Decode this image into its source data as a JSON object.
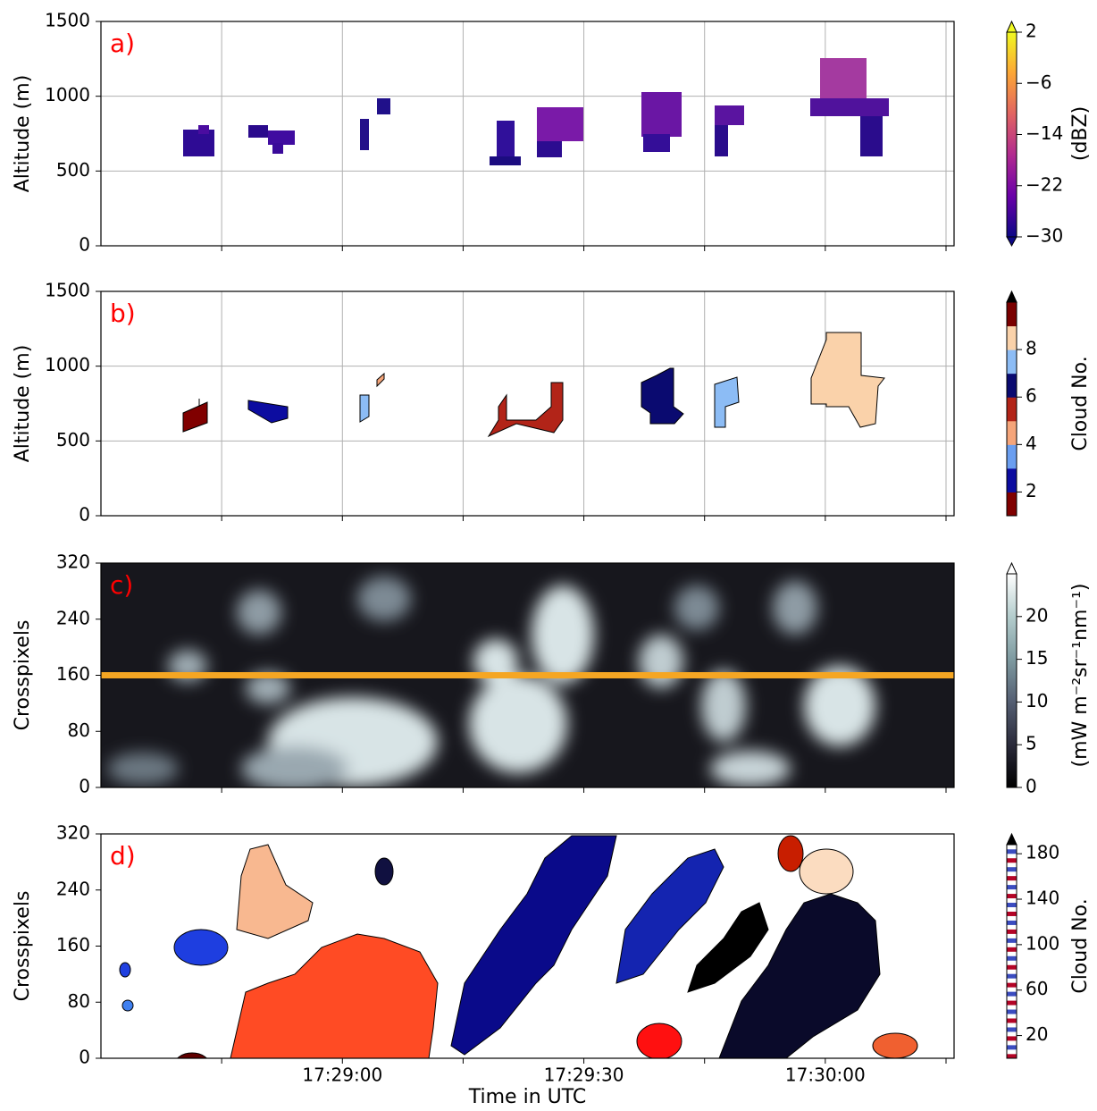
{
  "chart_data": [
    {
      "type": "heatmap",
      "panel_label": "a)",
      "ylabel": "Altitude (m)",
      "ylim": [
        0,
        1500
      ],
      "yticks": [
        0,
        500,
        1000,
        1500
      ],
      "xlim": [
        "17:28:30",
        "17:30:16"
      ],
      "xticks": [
        "17:29:00",
        "17:29:30",
        "17:30:00"
      ],
      "xticks_minor": [
        "17:28:45",
        "17:29:15",
        "17:29:45",
        "17:30:15"
      ],
      "xticklabels": false,
      "grid": true,
      "colorbar": {
        "label": "(dBZ)",
        "clim": [
          -30,
          2
        ],
        "ticks": [
          2,
          {
            "value": -6,
            "label": "−6"
          },
          {
            "value": -14,
            "label": "−14"
          },
          {
            "value": -22,
            "label": "−22"
          },
          {
            "value": -30,
            "label": "−30"
          }
        ],
        "colormap": "plasma",
        "extend": "both"
      }
    },
    {
      "type": "polygons",
      "panel_label": "b)",
      "ylabel": "Altitude (m)",
      "ylim": [
        0,
        1500
      ],
      "yticks": [
        0,
        500,
        1000,
        1500
      ],
      "xlim": [
        "17:28:30",
        "17:30:16"
      ],
      "xticks": [
        "17:29:00",
        "17:29:30",
        "17:30:00"
      ],
      "xticks_minor": [
        "17:28:45",
        "17:29:15",
        "17:29:45",
        "17:30:15"
      ],
      "xticklabels": false,
      "grid": true,
      "colorbar": {
        "label": "Cloud No.",
        "clim": [
          1,
          10
        ],
        "ticks": [
          2,
          4,
          6,
          8
        ],
        "colors": [
          "#800000",
          "#0c0ca0",
          "#6a9ef0",
          "#f5a57a",
          "#b22418",
          "#0a0a70",
          "#8cbcf5",
          "#fad2aa",
          "#7a0000"
        ],
        "extend": "max",
        "extend_color": "#000000"
      }
    },
    {
      "type": "image",
      "panel_label": "c)",
      "ylabel": "Crosspixels",
      "ylim": [
        0,
        320
      ],
      "yticks": [
        0,
        80,
        160,
        240,
        320
      ],
      "xlim": [
        "17:28:30",
        "17:30:16"
      ],
      "xticks": [
        "17:29:00",
        "17:29:30",
        "17:30:00"
      ],
      "xticks_minor": [
        "17:28:45",
        "17:29:15",
        "17:29:45",
        "17:30:15"
      ],
      "xticklabels": false,
      "grid": false,
      "hline": {
        "value": 160,
        "color": "#f5a623"
      },
      "colorbar": {
        "label": "(mW m⁻²sr⁻¹nm⁻¹)",
        "clim": [
          0,
          25
        ],
        "ticks": [
          0,
          5,
          10,
          15,
          20
        ],
        "colormap": "bone",
        "extend": "max",
        "extend_color": "#ffffff"
      }
    },
    {
      "type": "labels",
      "panel_label": "d)",
      "ylabel": "Crosspixels",
      "ylim": [
        0,
        320
      ],
      "yticks": [
        0,
        80,
        160,
        240,
        320
      ],
      "xlim": [
        "17:28:30",
        "17:30:16"
      ],
      "xticks": [
        "17:29:00",
        "17:29:30",
        "17:30:00"
      ],
      "xticks_minor": [
        "17:28:45",
        "17:29:15",
        "17:29:45",
        "17:30:15"
      ],
      "xticklabels": true,
      "xlabel": "Time in UTC",
      "grid": false,
      "colorbar": {
        "label": "Cloud No.",
        "clim": [
          0,
          188
        ],
        "ticks": [
          20,
          60,
          100,
          140,
          180
        ],
        "colormap": "striped",
        "extend": "max",
        "extend_color": "#000000"
      }
    }
  ]
}
